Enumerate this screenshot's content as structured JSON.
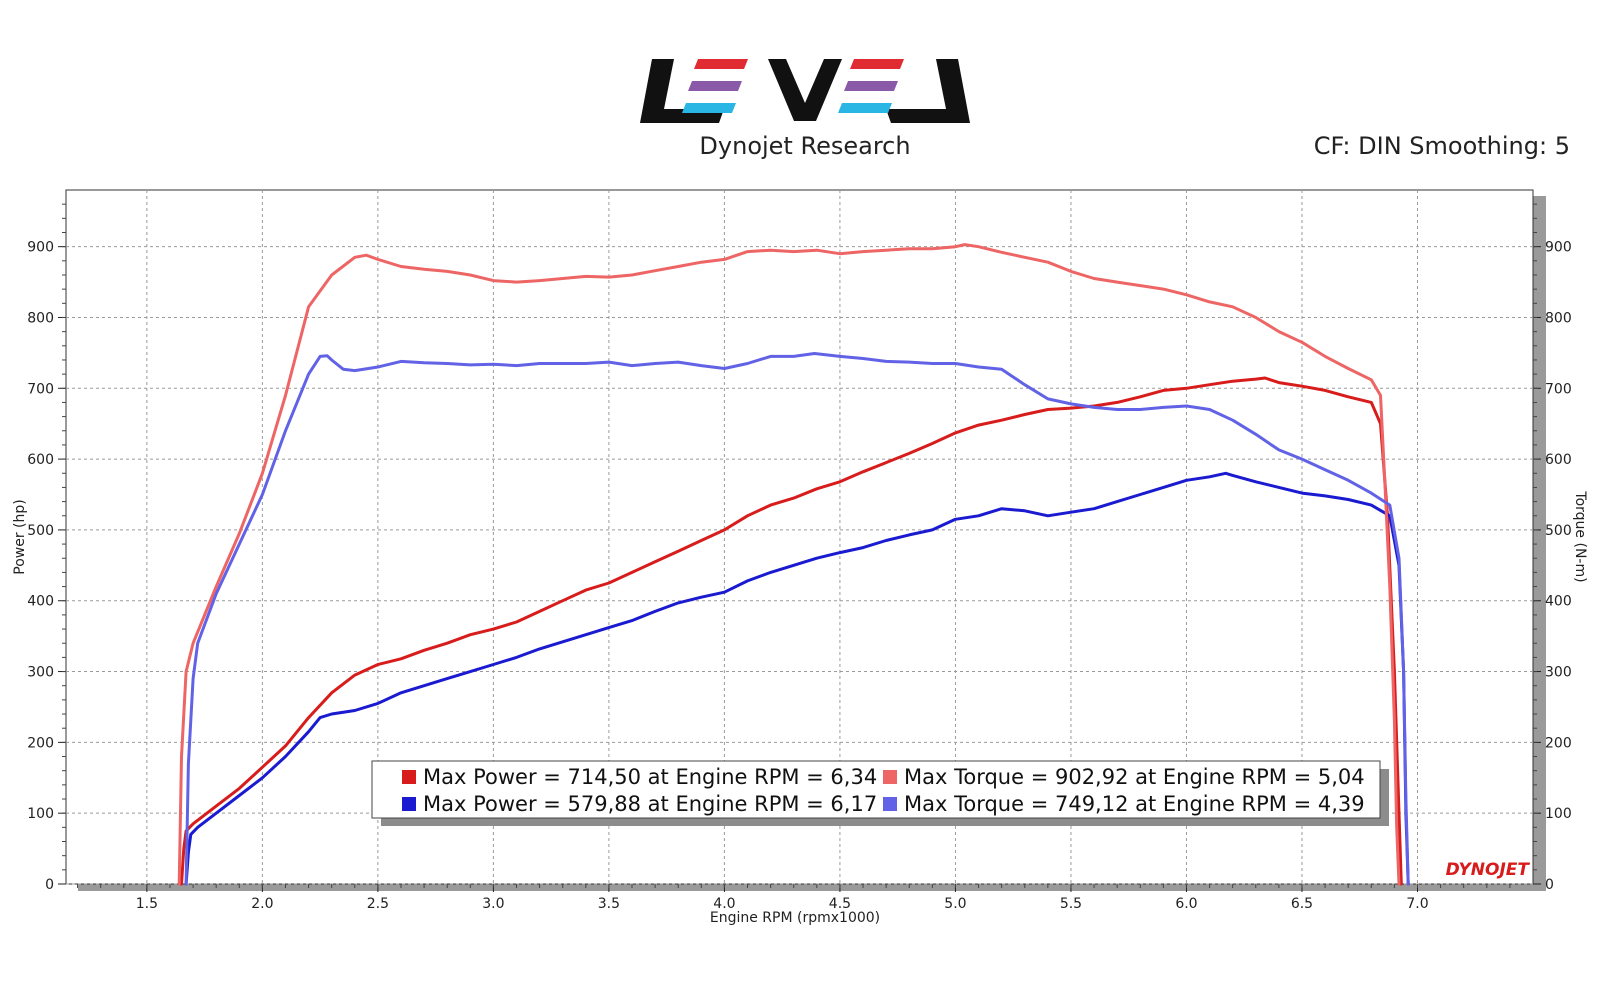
{
  "header": {
    "subtitle": "Dynojet Research",
    "cf_info": "CF: DIN Smoothing: 5",
    "logo_text": "LEVEL",
    "brand_mark": "DYNOJET"
  },
  "colors": {
    "red": "#d81c1c",
    "light_red": "#ee6565",
    "blue": "#1a1ad0",
    "light_blue": "#6262e6"
  },
  "chart_data": {
    "type": "line",
    "xlabel": "Engine RPM (rpmx1000)",
    "ylabel": "Power (hp)",
    "y2label": "Torque (N-m)",
    "xlim": [
      1.15,
      7.5
    ],
    "ylim": [
      0,
      980
    ],
    "x_ticks": [
      "1.5",
      "2.0",
      "2.5",
      "3.0",
      "3.5",
      "4.0",
      "4.5",
      "5.0",
      "5.5",
      "6.0",
      "6.5",
      "7.0"
    ],
    "y_ticks": [
      "0",
      "100",
      "200",
      "300",
      "400",
      "500",
      "600",
      "700",
      "800",
      "900"
    ],
    "grid": true,
    "series": [
      {
        "name": "Max Power = 714,50 at Engine RPM = 6,34",
        "color": "#d81c1c",
        "x": [
          1.65,
          1.66,
          1.67,
          1.7,
          1.8,
          1.9,
          2.0,
          2.1,
          2.2,
          2.3,
          2.4,
          2.5,
          2.6,
          2.7,
          2.8,
          2.9,
          3.0,
          3.1,
          3.2,
          3.3,
          3.4,
          3.5,
          3.6,
          3.7,
          3.8,
          3.9,
          4.0,
          4.1,
          4.2,
          4.3,
          4.4,
          4.5,
          4.6,
          4.7,
          4.8,
          4.9,
          5.0,
          5.1,
          5.2,
          5.3,
          5.4,
          5.5,
          5.6,
          5.7,
          5.8,
          5.9,
          6.0,
          6.1,
          6.2,
          6.3,
          6.34,
          6.4,
          6.5,
          6.6,
          6.7,
          6.8,
          6.84,
          6.87,
          6.9,
          6.92,
          6.93
        ],
        "y": [
          0,
          50,
          75,
          85,
          110,
          135,
          165,
          195,
          235,
          270,
          295,
          310,
          318,
          330,
          340,
          352,
          360,
          370,
          385,
          400,
          415,
          425,
          440,
          455,
          470,
          485,
          500,
          520,
          535,
          545,
          558,
          568,
          582,
          595,
          608,
          622,
          637,
          648,
          655,
          663,
          670,
          672,
          675,
          680,
          688,
          697,
          700,
          705,
          710,
          713,
          714.5,
          708,
          703,
          697,
          688,
          680,
          650,
          520,
          300,
          100,
          0
        ]
      },
      {
        "name": "Max Power = 579,88 at Engine RPM = 6,17",
        "color": "#1a1ad0",
        "x": [
          1.67,
          1.68,
          1.69,
          1.72,
          1.8,
          1.9,
          2.0,
          2.1,
          2.2,
          2.25,
          2.3,
          2.4,
          2.5,
          2.6,
          2.7,
          2.8,
          2.9,
          3.0,
          3.1,
          3.2,
          3.3,
          3.4,
          3.5,
          3.6,
          3.7,
          3.8,
          3.9,
          4.0,
          4.1,
          4.2,
          4.3,
          4.4,
          4.5,
          4.6,
          4.7,
          4.8,
          4.9,
          5.0,
          5.1,
          5.2,
          5.3,
          5.4,
          5.5,
          5.6,
          5.7,
          5.8,
          5.9,
          6.0,
          6.1,
          6.17,
          6.2,
          6.3,
          6.4,
          6.5,
          6.6,
          6.7,
          6.8,
          6.88,
          6.92,
          6.94,
          6.95,
          6.96
        ],
        "y": [
          0,
          45,
          70,
          80,
          100,
          125,
          150,
          180,
          215,
          235,
          240,
          245,
          255,
          270,
          280,
          290,
          300,
          310,
          320,
          332,
          342,
          352,
          362,
          372,
          385,
          397,
          405,
          412,
          428,
          440,
          450,
          460,
          468,
          475,
          485,
          493,
          500,
          515,
          520,
          530,
          527,
          520,
          525,
          530,
          540,
          550,
          560,
          570,
          575,
          579.9,
          577,
          568,
          560,
          552,
          548,
          543,
          535,
          520,
          450,
          300,
          100,
          0
        ]
      },
      {
        "name": "Max Torque = 902,92 at Engine RPM = 5,04",
        "color": "#ee6565",
        "x": [
          1.64,
          1.65,
          1.67,
          1.7,
          1.8,
          1.9,
          2.0,
          2.1,
          2.2,
          2.3,
          2.4,
          2.45,
          2.5,
          2.6,
          2.7,
          2.8,
          2.9,
          3.0,
          3.1,
          3.2,
          3.3,
          3.4,
          3.5,
          3.6,
          3.7,
          3.8,
          3.9,
          4.0,
          4.1,
          4.2,
          4.3,
          4.4,
          4.5,
          4.6,
          4.7,
          4.8,
          4.9,
          5.0,
          5.04,
          5.1,
          5.2,
          5.3,
          5.4,
          5.5,
          5.6,
          5.7,
          5.8,
          5.9,
          6.0,
          6.1,
          6.2,
          6.3,
          6.4,
          6.5,
          6.6,
          6.7,
          6.8,
          6.84,
          6.86,
          6.88,
          6.9,
          6.91,
          6.92
        ],
        "y": [
          0,
          180,
          300,
          340,
          420,
          495,
          580,
          690,
          815,
          860,
          885,
          888,
          882,
          872,
          868,
          865,
          860,
          852,
          850,
          852,
          855,
          858,
          857,
          860,
          866,
          872,
          878,
          882,
          893,
          895,
          893,
          895,
          890,
          893,
          895,
          897,
          897,
          900,
          902.9,
          900,
          892,
          885,
          878,
          865,
          855,
          850,
          845,
          840,
          832,
          822,
          815,
          800,
          780,
          765,
          745,
          728,
          712,
          690,
          560,
          420,
          230,
          80,
          0
        ]
      },
      {
        "name": "Max Torque = 749,12 at Engine RPM = 4,39",
        "color": "#6262e6",
        "x": [
          1.67,
          1.68,
          1.7,
          1.72,
          1.8,
          1.9,
          2.0,
          2.1,
          2.2,
          2.25,
          2.28,
          2.3,
          2.35,
          2.4,
          2.5,
          2.6,
          2.7,
          2.8,
          2.9,
          3.0,
          3.1,
          3.2,
          3.3,
          3.4,
          3.5,
          3.6,
          3.7,
          3.8,
          3.9,
          4.0,
          4.1,
          4.2,
          4.3,
          4.39,
          4.5,
          4.6,
          4.7,
          4.8,
          4.9,
          5.0,
          5.1,
          5.2,
          5.3,
          5.4,
          5.5,
          5.6,
          5.7,
          5.8,
          5.9,
          6.0,
          6.1,
          6.2,
          6.3,
          6.4,
          6.5,
          6.6,
          6.7,
          6.8,
          6.88,
          6.92,
          6.94,
          6.95,
          6.96
        ],
        "y": [
          0,
          170,
          290,
          340,
          410,
          480,
          550,
          640,
          720,
          745,
          746,
          740,
          727,
          725,
          730,
          738,
          736,
          735,
          733,
          734,
          732,
          735,
          735,
          735,
          737,
          732,
          735,
          737,
          732,
          728,
          735,
          745,
          745,
          749.1,
          745,
          742,
          738,
          737,
          735,
          735,
          730,
          727,
          705,
          685,
          678,
          673,
          670,
          670,
          673,
          675,
          670,
          655,
          635,
          613,
          600,
          585,
          570,
          552,
          535,
          460,
          300,
          120,
          0
        ]
      }
    ]
  }
}
